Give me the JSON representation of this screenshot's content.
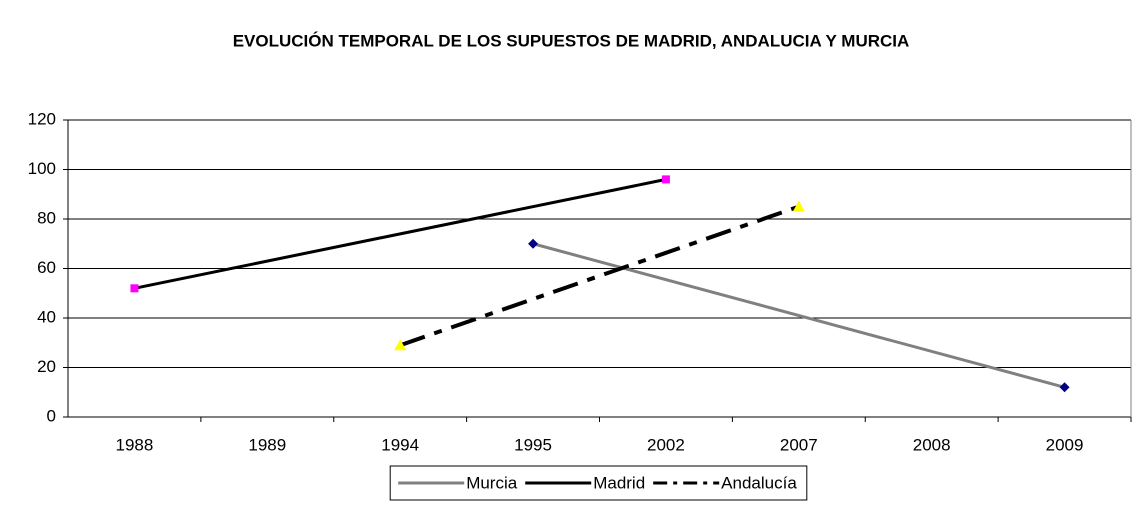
{
  "chart_data": {
    "type": "line",
    "title": "EVOLUCIÓN TEMPORAL DE LOS SUPUESTOS DE MADRID, ANDALUCIA Y MURCIA",
    "categories": [
      "1988",
      "1989",
      "1994",
      "1995",
      "2002",
      "2007",
      "2008",
      "2009"
    ],
    "series": [
      {
        "name": "Murcia",
        "color": "#808080",
        "marker_color": "#000080",
        "marker": "diamond",
        "dash": "solid",
        "values": [
          null,
          null,
          null,
          70,
          null,
          null,
          null,
          12
        ]
      },
      {
        "name": "Madrid",
        "color": "#000000",
        "marker_color": "#ff00ff",
        "marker": "square",
        "dash": "solid",
        "values": [
          52,
          null,
          null,
          null,
          96,
          null,
          null,
          null
        ]
      },
      {
        "name": "Andalucía",
        "color": "#000000",
        "marker_color": "#ffff00",
        "marker": "triangle",
        "dash": "dashdot",
        "values": [
          null,
          null,
          29,
          null,
          null,
          85,
          null,
          null
        ]
      }
    ],
    "connect_gaps": true,
    "ylim": [
      0,
      120
    ],
    "yticks": [
      0,
      20,
      40,
      60,
      80,
      100,
      120
    ],
    "grid": true,
    "legend": "bottom"
  }
}
